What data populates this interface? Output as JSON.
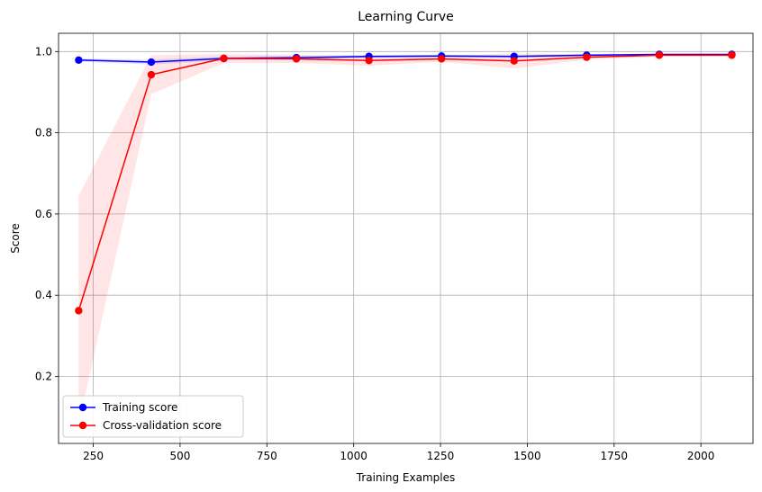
{
  "chart_data": {
    "type": "line",
    "title": "Learning Curve",
    "xlabel": "Training Examples",
    "ylabel": "Score",
    "xlim": [
      150,
      2150
    ],
    "ylim": [
      0.035,
      1.045
    ],
    "xticks": [
      250,
      500,
      750,
      1000,
      1250,
      1500,
      1750,
      2000
    ],
    "yticks": [
      0.2,
      0.4,
      0.6,
      0.8,
      1.0
    ],
    "xtick_labels": [
      "250",
      "500",
      "750",
      "1000",
      "1250",
      "1500",
      "1750",
      "2000"
    ],
    "ytick_labels": [
      "0.2",
      "0.4",
      "0.6",
      "0.8",
      "1.0"
    ],
    "grid": true,
    "legend_position": "lower-left",
    "x": [
      208,
      417,
      626,
      835,
      1044,
      1253,
      1462,
      1671,
      1880,
      2089
    ],
    "series": [
      {
        "name": "Training score",
        "color": "#0000ff",
        "values": [
          0.979,
          0.974,
          0.983,
          0.985,
          0.988,
          0.989,
          0.988,
          0.991,
          0.993,
          0.993
        ],
        "band_lower": [
          0.975,
          0.968,
          0.978,
          0.981,
          0.985,
          0.986,
          0.985,
          0.988,
          0.991,
          0.991
        ],
        "band_upper": [
          0.983,
          0.98,
          0.988,
          0.989,
          0.991,
          0.992,
          0.991,
          0.994,
          0.995,
          0.995
        ]
      },
      {
        "name": "Cross-validation score",
        "color": "#ff0000",
        "values": [
          0.362,
          0.943,
          0.983,
          0.982,
          0.978,
          0.982,
          0.977,
          0.986,
          0.991,
          0.991
        ],
        "band_lower": [
          0.08,
          0.895,
          0.972,
          0.972,
          0.965,
          0.975,
          0.958,
          0.98,
          0.987,
          0.987
        ],
        "band_upper": [
          0.645,
          0.991,
          0.994,
          0.992,
          0.991,
          0.989,
          0.996,
          0.992,
          0.995,
          0.995
        ]
      }
    ]
  }
}
